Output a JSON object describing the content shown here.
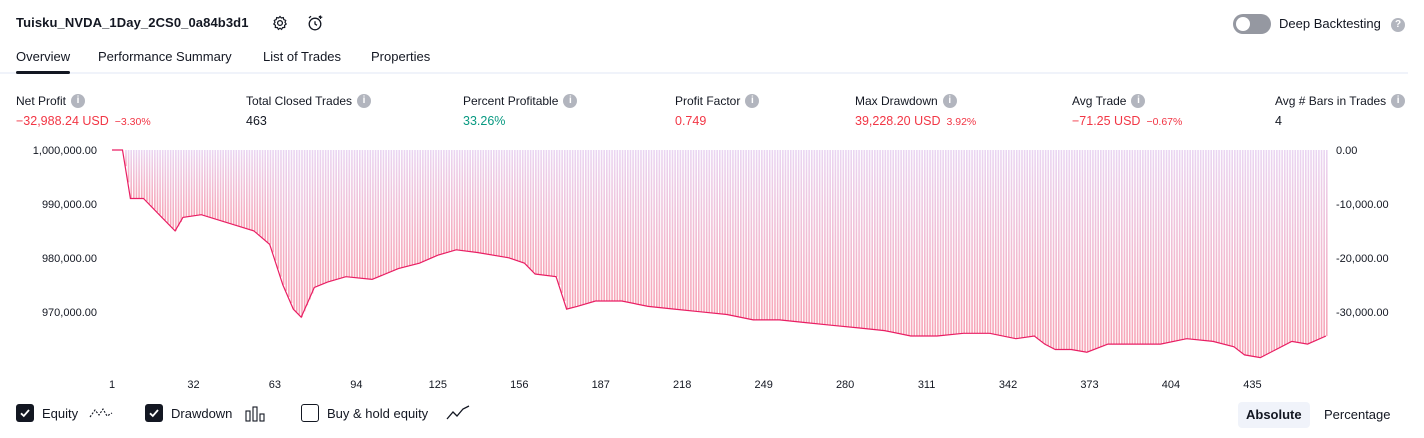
{
  "header": {
    "title": "Tuisku_NVDA_1Day_2CS0_0a84b3d1",
    "icons": [
      "settings-icon",
      "alarm-add-icon"
    ],
    "deep_backtesting_label": "Deep Backtesting",
    "deep_backtesting_enabled": false
  },
  "tabs": [
    {
      "label": "Overview",
      "active": true
    },
    {
      "label": "Performance Summary",
      "active": false
    },
    {
      "label": "List of Trades",
      "active": false
    },
    {
      "label": "Properties",
      "active": false
    }
  ],
  "metrics": [
    {
      "label": "Net Profit",
      "value": "−32,988.24 USD",
      "sub": "−3.30%",
      "tone": "neg"
    },
    {
      "label": "Total Closed Trades",
      "value": "463",
      "sub": "",
      "tone": "neutral"
    },
    {
      "label": "Percent Profitable",
      "value": "33.26%",
      "sub": "",
      "tone": "pos"
    },
    {
      "label": "Profit Factor",
      "value": "0.749",
      "sub": "",
      "tone": "neg"
    },
    {
      "label": "Max Drawdown",
      "value": "39,228.20 USD",
      "sub": "3.92%",
      "tone": "neg"
    },
    {
      "label": "Avg Trade",
      "value": "−71.25 USD",
      "sub": "−0.67%",
      "tone": "neg"
    },
    {
      "label": "Avg # Bars in Trades",
      "value": "4",
      "sub": "",
      "tone": "neutral"
    }
  ],
  "chart_data": {
    "type": "area",
    "x_ticks": [
      1,
      32,
      63,
      94,
      125,
      156,
      187,
      218,
      249,
      280,
      311,
      342,
      373,
      404,
      435
    ],
    "x_range": [
      1,
      463
    ],
    "y_left_ticks": [
      "1,000,000.00",
      "990,000.00",
      "980,000.00",
      "970,000.00"
    ],
    "y_left_values": [
      1000000,
      990000,
      980000,
      970000
    ],
    "y_left_range": [
      960500,
      1000000
    ],
    "y_right_ticks": [
      "0.00",
      "-10,000.00",
      "-20,000.00",
      "-30,000.00"
    ],
    "y_right_values": [
      0,
      -10000,
      -20000,
      -30000
    ],
    "series": [
      {
        "kind": "equity",
        "color": "#e91e63",
        "points": [
          [
            1,
            1000000
          ],
          [
            5,
            1000000
          ],
          [
            8,
            991000
          ],
          [
            13,
            991000
          ],
          [
            20,
            987500
          ],
          [
            25,
            985000
          ],
          [
            28,
            987500
          ],
          [
            35,
            988000
          ],
          [
            45,
            986500
          ],
          [
            55,
            985000
          ],
          [
            61,
            982500
          ],
          [
            66,
            975000
          ],
          [
            70,
            970500
          ],
          [
            73,
            969000
          ],
          [
            78,
            974500
          ],
          [
            83,
            975500
          ],
          [
            90,
            976500
          ],
          [
            100,
            976000
          ],
          [
            110,
            978000
          ],
          [
            118,
            979000
          ],
          [
            125,
            980500
          ],
          [
            132,
            981500
          ],
          [
            140,
            981000
          ],
          [
            152,
            980000
          ],
          [
            158,
            979000
          ],
          [
            162,
            977000
          ],
          [
            170,
            976500
          ],
          [
            174,
            970500
          ],
          [
            178,
            971000
          ],
          [
            185,
            972000
          ],
          [
            195,
            972000
          ],
          [
            205,
            971000
          ],
          [
            215,
            970500
          ],
          [
            225,
            970000
          ],
          [
            235,
            969500
          ],
          [
            245,
            968500
          ],
          [
            255,
            968500
          ],
          [
            265,
            968000
          ],
          [
            275,
            967500
          ],
          [
            285,
            967000
          ],
          [
            295,
            966500
          ],
          [
            305,
            965500
          ],
          [
            315,
            965500
          ],
          [
            325,
            966000
          ],
          [
            335,
            966000
          ],
          [
            345,
            965000
          ],
          [
            352,
            965500
          ],
          [
            356,
            964000
          ],
          [
            360,
            963000
          ],
          [
            366,
            963000
          ],
          [
            372,
            962500
          ],
          [
            380,
            964000
          ],
          [
            390,
            964000
          ],
          [
            400,
            964000
          ],
          [
            410,
            965000
          ],
          [
            420,
            964500
          ],
          [
            428,
            963500
          ],
          [
            432,
            962000
          ],
          [
            438,
            961500
          ],
          [
            444,
            963000
          ],
          [
            450,
            964500
          ],
          [
            456,
            964000
          ],
          [
            463,
            965500
          ]
        ]
      }
    ],
    "drawdown_color": "#f7a6b8",
    "equity_checked": true,
    "drawdown_checked": true,
    "buy_hold_checked": false
  },
  "legend": {
    "equity_label": "Equity",
    "drawdown_label": "Drawdown",
    "buyhold_label": "Buy & hold equity"
  },
  "view_mode": {
    "absolute_label": "Absolute",
    "percentage_label": "Percentage",
    "active": "absolute"
  }
}
